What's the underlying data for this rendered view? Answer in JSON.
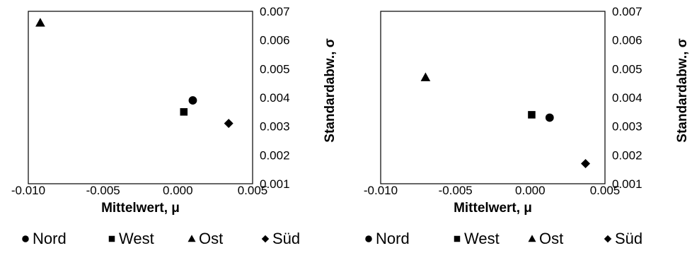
{
  "chart_data": [
    {
      "type": "scatter",
      "title": "",
      "xlabel": "Mittelwert, μ",
      "ylabel": "Standardabw., σ",
      "xlim": [
        -0.01,
        0.005
      ],
      "ylim": [
        0.001,
        0.007
      ],
      "x_ticks": [
        "-0.010",
        "-0.005",
        "0.000",
        "0.005"
      ],
      "y_ticks": [
        "0.007",
        "0.006",
        "0.005",
        "0.004",
        "0.003",
        "0.002",
        "0.001"
      ],
      "grid": false,
      "legend": "bottom",
      "series": [
        {
          "name": "Nord",
          "marker": "circle",
          "x": [
            0.001
          ],
          "y": [
            0.0039
          ]
        },
        {
          "name": "West",
          "marker": "square",
          "x": [
            0.0004
          ],
          "y": [
            0.0035
          ]
        },
        {
          "name": "Ost",
          "marker": "triangle",
          "x": [
            -0.0092
          ],
          "y": [
            0.0066
          ]
        },
        {
          "name": "Süd",
          "marker": "diamond",
          "x": [
            0.0034
          ],
          "y": [
            0.0031
          ]
        }
      ]
    },
    {
      "type": "scatter",
      "title": "",
      "xlabel": "Mittelwert, μ",
      "ylabel": "Standardabw., σ",
      "xlim": [
        -0.01,
        0.005
      ],
      "ylim": [
        0.001,
        0.007
      ],
      "x_ticks": [
        "-0.010",
        "-0.005",
        "0.000",
        "0.005"
      ],
      "y_ticks": [
        "0.007",
        "0.006",
        "0.005",
        "0.004",
        "0.003",
        "0.002",
        "0.001"
      ],
      "grid": false,
      "legend": "bottom",
      "series": [
        {
          "name": "Nord",
          "marker": "circle",
          "x": [
            0.0013
          ],
          "y": [
            0.0033
          ]
        },
        {
          "name": "West",
          "marker": "square",
          "x": [
            0.0001
          ],
          "y": [
            0.0034
          ]
        },
        {
          "name": "Ost",
          "marker": "triangle",
          "x": [
            -0.007
          ],
          "y": [
            0.0047
          ]
        },
        {
          "name": "Süd",
          "marker": "diamond",
          "x": [
            0.0037
          ],
          "y": [
            0.0017
          ]
        }
      ]
    }
  ],
  "colors": {
    "marker": "#000000",
    "axis": "#000000",
    "background": "#ffffff"
  }
}
